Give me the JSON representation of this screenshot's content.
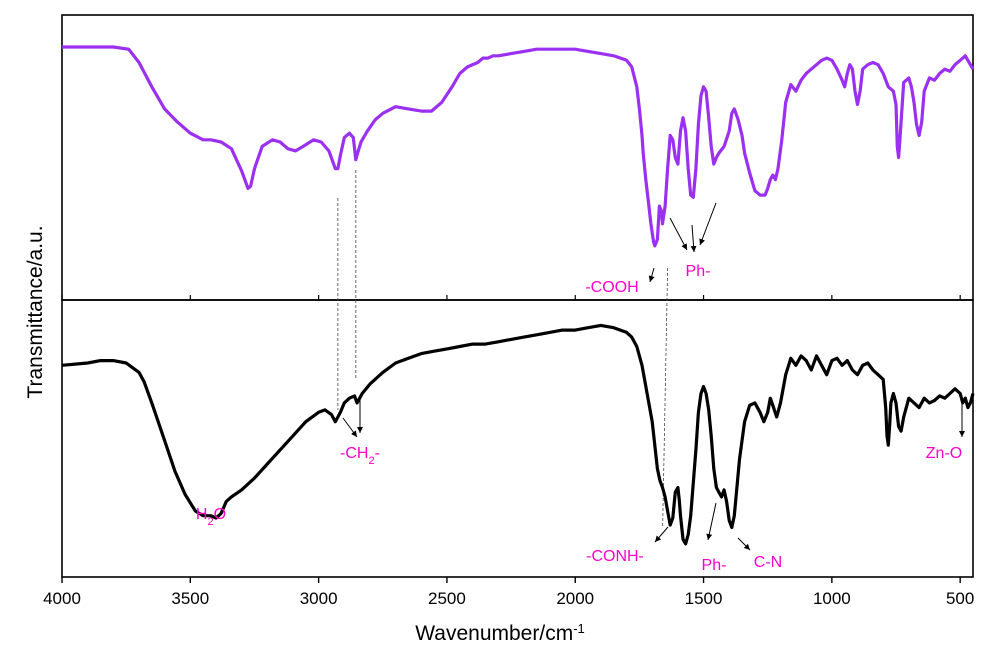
{
  "chart_data": {
    "type": "line",
    "xlabel": "Wavenumber/cm",
    "xlabel_sup": "-1",
    "ylabel": "Transmittance/a.u.",
    "xlim": [
      4000,
      450
    ],
    "x_reversed": true,
    "grid": false,
    "x_ticks": [
      "4000",
      "3500",
      "3000",
      "2500",
      "2000",
      "1500",
      "1000",
      "500"
    ],
    "panels": [
      {
        "position": "top",
        "series": [
          {
            "color": "#9b30f0",
            "x": [
              4000,
              3900,
              3800,
              3740,
              3700,
              3650,
              3600,
              3550,
              3500,
              3450,
              3420,
              3380,
              3340,
              3300,
              3275,
              3265,
              3250,
              3220,
              3180,
              3150,
              3120,
              3090,
              3060,
              3020,
              2990,
              2960,
              2935,
              2925,
              2915,
              2900,
              2880,
              2865,
              2855,
              2848,
              2835,
              2810,
              2780,
              2750,
              2700,
              2650,
              2600,
              2560,
              2520,
              2480,
              2450,
              2420,
              2380,
              2360,
              2340,
              2320,
              2300,
              2250,
              2200,
              2150,
              2100,
              2050,
              2000,
              1950,
              1900,
              1850,
              1800,
              1780,
              1760,
              1750,
              1740,
              1735,
              1725,
              1715,
              1705,
              1695,
              1690,
              1680,
              1672,
              1665,
              1660,
              1650,
              1640,
              1630,
              1620,
              1610,
              1600,
              1590,
              1580,
              1570,
              1560,
              1550,
              1540,
              1530,
              1520,
              1510,
              1500,
              1490,
              1480,
              1470,
              1460,
              1450,
              1440,
              1420,
              1400,
              1390,
              1380,
              1365,
              1350,
              1340,
              1320,
              1300,
              1280,
              1260,
              1250,
              1240,
              1230,
              1220,
              1210,
              1195,
              1180,
              1160,
              1140,
              1120,
              1100,
              1080,
              1060,
              1040,
              1020,
              1000,
              980,
              960,
              950,
              940,
              930,
              920,
              910,
              900,
              890,
              880,
              860,
              840,
              820,
              800,
              780,
              760,
              750,
              745,
              740,
              735,
              720,
              700,
              690,
              680,
              670,
              660,
              650,
              640,
              620,
              600,
              580,
              560,
              540,
              520,
              500,
              480,
              460,
              450
            ],
            "y": [
              1.0,
              1.0,
              1.0,
              0.99,
              0.93,
              0.82,
              0.72,
              0.66,
              0.61,
              0.58,
              0.58,
              0.57,
              0.54,
              0.44,
              0.36,
              0.37,
              0.45,
              0.55,
              0.58,
              0.57,
              0.54,
              0.53,
              0.55,
              0.58,
              0.57,
              0.53,
              0.45,
              0.45,
              0.51,
              0.59,
              0.61,
              0.59,
              0.49,
              0.52,
              0.57,
              0.62,
              0.67,
              0.7,
              0.73,
              0.72,
              0.71,
              0.71,
              0.75,
              0.82,
              0.88,
              0.91,
              0.93,
              0.95,
              0.95,
              0.96,
              0.96,
              0.97,
              0.98,
              0.99,
              0.99,
              0.99,
              0.99,
              0.98,
              0.97,
              0.96,
              0.94,
              0.91,
              0.82,
              0.72,
              0.6,
              0.52,
              0.4,
              0.3,
              0.2,
              0.12,
              0.1,
              0.13,
              0.28,
              0.26,
              0.2,
              0.28,
              0.45,
              0.6,
              0.58,
              0.5,
              0.47,
              0.62,
              0.68,
              0.62,
              0.45,
              0.33,
              0.32,
              0.45,
              0.65,
              0.78,
              0.82,
              0.8,
              0.68,
              0.55,
              0.47,
              0.5,
              0.52,
              0.55,
              0.62,
              0.7,
              0.72,
              0.67,
              0.6,
              0.52,
              0.43,
              0.35,
              0.33,
              0.33,
              0.36,
              0.4,
              0.42,
              0.4,
              0.45,
              0.58,
              0.75,
              0.83,
              0.8,
              0.85,
              0.88,
              0.9,
              0.92,
              0.94,
              0.95,
              0.94,
              0.9,
              0.85,
              0.82,
              0.88,
              0.92,
              0.9,
              0.8,
              0.74,
              0.8,
              0.9,
              0.92,
              0.93,
              0.92,
              0.88,
              0.82,
              0.8,
              0.74,
              0.55,
              0.5,
              0.58,
              0.84,
              0.86,
              0.82,
              0.75,
              0.65,
              0.6,
              0.66,
              0.8,
              0.86,
              0.85,
              0.88,
              0.9,
              0.89,
              0.92,
              0.94,
              0.96,
              0.92,
              0.9
            ]
          }
        ]
      },
      {
        "position": "bottom",
        "series": [
          {
            "color": "#000000",
            "x": [
              4000,
              3900,
              3850,
              3800,
              3750,
              3700,
              3680,
              3650,
              3600,
              3560,
              3520,
              3480,
              3450,
              3420,
              3400,
              3380,
              3360,
              3340,
              3300,
              3250,
              3200,
              3150,
              3100,
              3050,
              3000,
              2975,
              2950,
              2935,
              2925,
              2915,
              2900,
              2880,
              2860,
              2850,
              2830,
              2800,
              2750,
              2700,
              2650,
              2600,
              2550,
              2500,
              2450,
              2400,
              2350,
              2300,
              2250,
              2200,
              2150,
              2100,
              2050,
              2000,
              1950,
              1900,
              1850,
              1800,
              1780,
              1760,
              1740,
              1720,
              1700,
              1690,
              1680,
              1670,
              1660,
              1650,
              1640,
              1630,
              1620,
              1610,
              1600,
              1595,
              1590,
              1580,
              1570,
              1560,
              1550,
              1540,
              1530,
              1520,
              1510,
              1500,
              1490,
              1480,
              1470,
              1460,
              1450,
              1440,
              1430,
              1420,
              1410,
              1400,
              1390,
              1380,
              1370,
              1360,
              1340,
              1320,
              1300,
              1280,
              1265,
              1250,
              1240,
              1230,
              1215,
              1200,
              1180,
              1160,
              1140,
              1120,
              1100,
              1080,
              1060,
              1040,
              1020,
              1000,
              980,
              960,
              940,
              920,
              900,
              880,
              860,
              840,
              820,
              800,
              790,
              785,
              780,
              775,
              770,
              760,
              750,
              740,
              730,
              720,
              700,
              680,
              660,
              640,
              620,
              600,
              580,
              560,
              540,
              520,
              500,
              490,
              480,
              470,
              460,
              450
            ],
            "y": [
              0.82,
              0.83,
              0.84,
              0.84,
              0.83,
              0.79,
              0.75,
              0.66,
              0.5,
              0.37,
              0.27,
              0.2,
              0.18,
              0.18,
              0.17,
              0.19,
              0.24,
              0.26,
              0.29,
              0.34,
              0.4,
              0.46,
              0.52,
              0.58,
              0.62,
              0.63,
              0.61,
              0.58,
              0.6,
              0.62,
              0.66,
              0.68,
              0.69,
              0.66,
              0.7,
              0.74,
              0.79,
              0.83,
              0.85,
              0.87,
              0.88,
              0.89,
              0.9,
              0.91,
              0.91,
              0.92,
              0.93,
              0.94,
              0.95,
              0.96,
              0.97,
              0.97,
              0.98,
              0.99,
              0.98,
              0.96,
              0.94,
              0.9,
              0.82,
              0.7,
              0.58,
              0.48,
              0.38,
              0.33,
              0.3,
              0.26,
              0.2,
              0.14,
              0.17,
              0.28,
              0.3,
              0.25,
              0.18,
              0.08,
              0.06,
              0.1,
              0.18,
              0.32,
              0.46,
              0.62,
              0.7,
              0.73,
              0.7,
              0.63,
              0.52,
              0.38,
              0.3,
              0.28,
              0.26,
              0.29,
              0.24,
              0.16,
              0.13,
              0.18,
              0.3,
              0.42,
              0.58,
              0.65,
              0.66,
              0.62,
              0.58,
              0.62,
              0.68,
              0.65,
              0.6,
              0.66,
              0.78,
              0.85,
              0.82,
              0.86,
              0.84,
              0.8,
              0.86,
              0.82,
              0.78,
              0.84,
              0.85,
              0.82,
              0.84,
              0.8,
              0.78,
              0.82,
              0.83,
              0.8,
              0.78,
              0.76,
              0.64,
              0.52,
              0.48,
              0.56,
              0.66,
              0.7,
              0.66,
              0.56,
              0.54,
              0.6,
              0.68,
              0.66,
              0.64,
              0.68,
              0.66,
              0.67,
              0.69,
              0.68,
              0.7,
              0.72,
              0.7,
              0.66,
              0.68,
              0.64,
              0.66,
              0.7
            ]
          }
        ]
      }
    ],
    "annotations": [
      {
        "panel": "top",
        "text": "-COOH",
        "sub": "",
        "tail": ""
      },
      {
        "panel": "top",
        "text": "Ph-",
        "sub": "",
        "tail": ""
      },
      {
        "panel": "bottom",
        "text": "H",
        "sub": "2",
        "tail": "O"
      },
      {
        "panel": "bottom",
        "text": "-CH",
        "sub": "2",
        "tail": "-"
      },
      {
        "panel": "bottom",
        "text": "-CONH-",
        "sub": "",
        "tail": ""
      },
      {
        "panel": "bottom",
        "text": "Ph-",
        "sub": "",
        "tail": ""
      },
      {
        "panel": "bottom",
        "text": "C-N",
        "sub": "",
        "tail": ""
      },
      {
        "panel": "bottom",
        "text": "Zn-O",
        "sub": "",
        "tail": ""
      }
    ],
    "guide_lines_at": [
      2925,
      2855,
      1640
    ],
    "annotation_color": "#ff00cc"
  }
}
